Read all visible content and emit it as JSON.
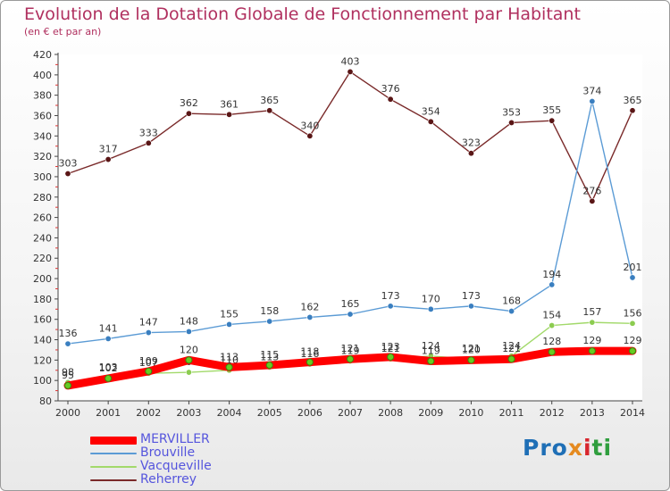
{
  "title": "Evolution de la Dotation Globale de Fonctionnement par Habitant",
  "subtitle": "(en € et par an)",
  "brand": {
    "p1": "Pro",
    "p2": "x",
    "p3": "i",
    "p4": "ti"
  },
  "chart_data": {
    "type": "line",
    "x": [
      "2000",
      "2001",
      "2002",
      "2003",
      "2004",
      "2005",
      "2006",
      "2007",
      "2008",
      "2009",
      "2010",
      "2011",
      "2012",
      "2013",
      "2014"
    ],
    "ylim": [
      80,
      420
    ],
    "yticks": [
      80,
      100,
      120,
      140,
      160,
      180,
      200,
      220,
      240,
      260,
      280,
      300,
      320,
      340,
      360,
      380,
      400,
      420
    ],
    "grid": false,
    "legend_position": "bottom-left",
    "series": [
      {
        "name": "Reherrey",
        "color": "#7a2a2a",
        "marker": "#5a1616",
        "values": [
          303,
          317,
          333,
          362,
          361,
          365,
          340,
          403,
          376,
          354,
          323,
          353,
          355,
          276,
          365
        ]
      },
      {
        "name": "Brouville",
        "color": "#5b9bd5",
        "marker": "#3a7fc0",
        "values": [
          136,
          141,
          147,
          148,
          155,
          158,
          162,
          165,
          173,
          170,
          173,
          168,
          194,
          374,
          201
        ]
      },
      {
        "name": "Vacqueville",
        "color": "#a2d96a",
        "marker": "#8ccc50",
        "values": [
          98,
          103,
          107,
          108,
          110,
          113,
          116,
          119,
          121,
          124,
          121,
          124,
          154,
          157,
          156
        ]
      },
      {
        "name": "MERVILLER",
        "color": "#ff0000",
        "marker": "#66cc22",
        "values": [
          95,
          102,
          109,
          120,
          113,
          115,
          118,
          121,
          123,
          119,
          120,
          121,
          128,
          129,
          129
        ]
      }
    ]
  },
  "legend": [
    {
      "name": "MERVILLER",
      "color": "#ff0000",
      "label_color": "#5555dd",
      "thickness": 9
    },
    {
      "name": "Brouville",
      "color": "#5b9bd5",
      "label_color": "#5555dd",
      "thickness": 2
    },
    {
      "name": "Vacqueville",
      "color": "#a2d96a",
      "label_color": "#5555dd",
      "thickness": 2
    },
    {
      "name": "Reherrey",
      "color": "#7a2a2a",
      "label_color": "#5555dd",
      "thickness": 2
    }
  ]
}
